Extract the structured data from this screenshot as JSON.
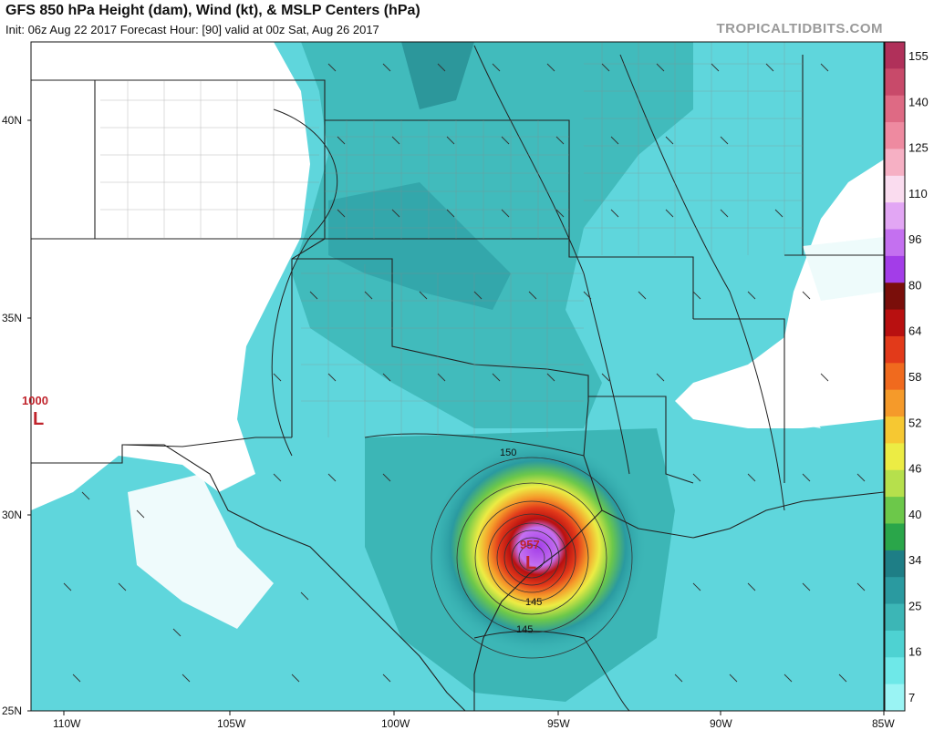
{
  "header": {
    "title": "GFS 850 hPa Height (dam), Wind (kt), & MSLP Centers (hPa)",
    "subtitle": "Init: 06z Aug 22 2017   Forecast Hour: [90]   valid at 00z Sat, Aug 26 2017",
    "brand": "TROPICALTIDBITS.COM"
  },
  "axes": {
    "lon_labels": [
      "110W",
      "105W",
      "100W",
      "95W",
      "90W",
      "85W"
    ],
    "lat_labels": [
      "40N",
      "35N",
      "30N",
      "25N"
    ]
  },
  "colorbar": {
    "labels": [
      "155",
      "140",
      "125",
      "110",
      "96",
      "80",
      "64",
      "58",
      "52",
      "46",
      "40",
      "34",
      "25",
      "16",
      "7"
    ],
    "colors": [
      "#b0305a",
      "#c84a6a",
      "#de6a84",
      "#ee8aa0",
      "#f6b0c4",
      "#fadcef",
      "#e2a6f4",
      "#c470f0",
      "#a33de8",
      "#7a0e0a",
      "#b81010",
      "#e23a1a",
      "#f06a1e",
      "#f59a2a",
      "#f6c832",
      "#ecec44",
      "#b6e04c",
      "#6cc84a",
      "#2aa64a",
      "#1e7e86",
      "#2a9aa0",
      "#3cb6b6",
      "#4ed2d2",
      "#6ee8e8",
      "#9af4f4"
    ]
  },
  "map_labels": {
    "low_west_pressure": "1000",
    "low_west_symbol": "L",
    "low_storm_pressure": "957",
    "low_storm_symbol": "L",
    "contour_150": "150",
    "contour_145_a": "145",
    "contour_145_b": "145"
  }
}
